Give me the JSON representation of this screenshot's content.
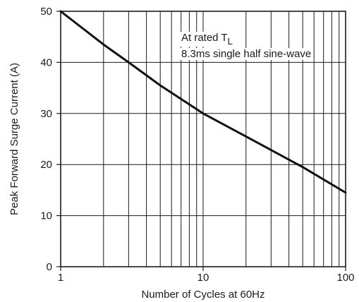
{
  "chart_data": {
    "type": "line",
    "title": "",
    "xlabel": "Number of Cycles at 60Hz",
    "ylabel": "Peak Forward Surge Current (A)",
    "x_scale": "log",
    "xlim": [
      1,
      100
    ],
    "ylim": [
      0,
      50
    ],
    "x_ticks": [
      1,
      10,
      100
    ],
    "y_ticks": [
      0,
      10,
      20,
      30,
      40,
      50
    ],
    "grid": true,
    "annotation": {
      "line1_prefix": "At rated T",
      "line1_subscript": "L",
      "line2": "8.3ms single half sine-wave"
    },
    "series": [
      {
        "x": [
          1,
          2,
          3,
          5,
          10,
          20,
          50,
          100
        ],
        "y": [
          50,
          43.5,
          40,
          35.5,
          30,
          25.5,
          19.5,
          14.5
        ]
      }
    ]
  }
}
